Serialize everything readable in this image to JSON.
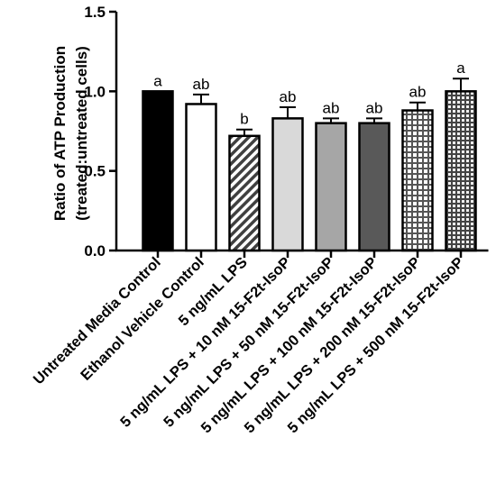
{
  "chart_data": {
    "type": "bar",
    "ylabel_line1": "Ratio of ATP Production",
    "ylabel_line2": "(treated:untreated cells)",
    "ylim": [
      0,
      1.5
    ],
    "yticks": [
      "0.0",
      "0.5",
      "1.0",
      "1.5"
    ],
    "ytick_values": [
      0,
      0.5,
      1.0,
      1.5
    ],
    "categories": [
      "Untreated Media Control",
      "Ethanol Vehicle Control",
      "5 ng/mL LPS",
      "5 ng/mL LPS + 10 nM 15-F2t-IsoP",
      "5 ng/mL LPS + 50 nM 15-F2t-IsoP",
      "5 ng/mL LPS + 100 nM 15-F2t-IsoP",
      "5 ng/mL LPS + 200 nM 15-F2t-IsoP",
      "5 ng/mL LPS + 500 nM 15-F2t-IsoP"
    ],
    "values": [
      1.0,
      0.92,
      0.72,
      0.83,
      0.8,
      0.8,
      0.88,
      1.0
    ],
    "errors": [
      0.0,
      0.06,
      0.04,
      0.07,
      0.03,
      0.03,
      0.05,
      0.08
    ],
    "significance": [
      "a",
      "ab",
      "b",
      "ab",
      "ab",
      "ab",
      "ab",
      "a"
    ],
    "bar_fills": [
      "solid-black",
      "white",
      "diagonal-hatch",
      "light-gray",
      "mid-gray",
      "dark-gray",
      "white-grid",
      "dense-grid"
    ],
    "colors": {
      "black": "#000000",
      "light_gray": "#d9d9d9",
      "mid_gray": "#a6a6a6",
      "dark_gray": "#595959"
    },
    "grid": false
  }
}
